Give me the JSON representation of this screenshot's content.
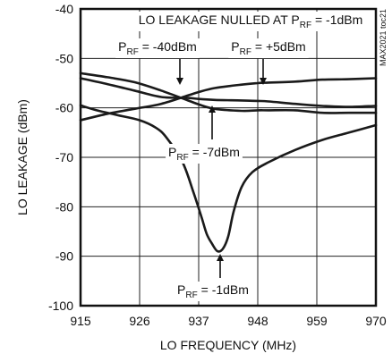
{
  "chart_data": {
    "type": "line",
    "title": "",
    "xlabel": "LO FREQUENCY (MHz)",
    "ylabel": "LO LEAKAGE (dBm)",
    "xlim": [
      915,
      970
    ],
    "ylim": [
      -100,
      -40
    ],
    "x_ticks": [
      915,
      926,
      937,
      948,
      959,
      970
    ],
    "y_ticks": [
      -40,
      -50,
      -60,
      -70,
      -80,
      -90,
      -100
    ],
    "grid": true,
    "legend": "none",
    "series": [
      {
        "name": "PRF = -40dBm",
        "x": [
          915,
          920,
          925,
          930,
          935,
          937,
          940,
          945,
          948,
          950,
          955,
          960,
          965,
          970
        ],
        "y": [
          -53,
          -53.8,
          -54.8,
          -56.5,
          -58.5,
          -59.3,
          -60.2,
          -60.6,
          -60.5,
          -60.5,
          -60.5,
          -61,
          -61,
          -61
        ]
      },
      {
        "name": "PRF = +5dBm",
        "x": [
          915,
          920,
          925,
          930,
          935,
          937,
          940,
          945,
          948,
          950,
          955,
          960,
          965,
          970
        ],
        "y": [
          -62.5,
          -61.2,
          -60.2,
          -59.2,
          -57.5,
          -56.8,
          -56,
          -55.3,
          -55,
          -54.9,
          -54.7,
          -54.3,
          -54.2,
          -54
        ]
      },
      {
        "name": "PRF = -7dBm",
        "x": [
          915,
          920,
          925,
          930,
          935,
          937,
          940,
          945,
          948,
          950,
          955,
          960,
          965,
          970
        ],
        "y": [
          -54,
          -55.2,
          -56.5,
          -57.8,
          -58,
          -58.2,
          -58.4,
          -58.5,
          -58.6,
          -58.7,
          -59.2,
          -59.6,
          -59.8,
          -59.6
        ]
      },
      {
        "name": "PRF = -1dBm",
        "x": [
          915,
          918,
          922,
          926,
          929,
          931,
          934,
          936,
          937.5,
          938.5,
          939.5,
          940.5,
          941.5,
          942.5,
          943.5,
          945,
          947,
          950,
          955,
          960,
          965,
          970
        ],
        "y": [
          -59.5,
          -60.5,
          -61.5,
          -62.5,
          -64,
          -66,
          -71,
          -77,
          -82,
          -85.5,
          -87.5,
          -89,
          -88.5,
          -86,
          -81,
          -76,
          -73,
          -71,
          -68.5,
          -66.5,
          -65,
          -63.5
        ]
      }
    ],
    "annotations": {
      "header_main": "LO LEAKAGE NULLED AT P",
      "header_sub": "RF",
      "header_tail": " = -1dBm",
      "side_note": "MAX2021 toc21",
      "labels": [
        {
          "main": "P",
          "sub": "RF",
          "tail": " = -40dBm"
        },
        {
          "main": "P",
          "sub": "RF",
          "tail": " = +5dBm"
        },
        {
          "main": "P",
          "sub": "RF",
          "tail": " = -7dBm"
        },
        {
          "main": "P",
          "sub": "RF",
          "tail": " = -1dBm"
        }
      ]
    }
  }
}
